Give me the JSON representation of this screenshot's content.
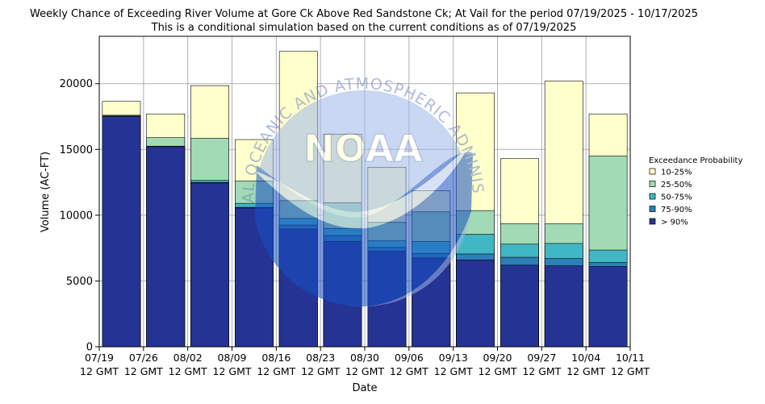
{
  "chart_data": {
    "type": "bar",
    "title": "Weekly Chance of Exceeding River Volume at Gore Ck Above Red Sandstone Ck; At Vail for the period 07/19/2025 - 10/17/2025",
    "subtitle": "This is a conditional simulation based on the current conditions as of 07/19/2025",
    "xlabel": "Date",
    "ylabel": "Volume (AC-FT)",
    "ylim": [
      0,
      23600
    ],
    "yticks": [
      0,
      5000,
      10000,
      15000,
      20000
    ],
    "ytick_labels": [
      "0",
      "5000",
      "10000",
      "15000",
      "20000"
    ],
    "xticks": [
      {
        "date": "07/19",
        "time": "12 GMT"
      },
      {
        "date": "07/26",
        "time": "12 GMT"
      },
      {
        "date": "08/02",
        "time": "12 GMT"
      },
      {
        "date": "08/09",
        "time": "12 GMT"
      },
      {
        "date": "08/16",
        "time": "12 GMT"
      },
      {
        "date": "08/23",
        "time": "12 GMT"
      },
      {
        "date": "08/30",
        "time": "12 GMT"
      },
      {
        "date": "09/06",
        "time": "12 GMT"
      },
      {
        "date": "09/13",
        "time": "12 GMT"
      },
      {
        "date": "09/20",
        "time": "12 GMT"
      },
      {
        "date": "09/27",
        "time": "12 GMT"
      },
      {
        "date": "10/04",
        "time": "12 GMT"
      },
      {
        "date": "10/11",
        "time": "12 GMT"
      }
    ],
    "grid": true,
    "legend_position": "right",
    "legend_title": "Exceedance Probability",
    "series": [
      {
        "name": "10-25%",
        "color": "#ffffcc",
        "values": [
          18650,
          17700,
          19850,
          15750,
          22450,
          16150,
          13650,
          11850,
          19300,
          14300,
          20200,
          17700
        ]
      },
      {
        "name": "25-50%",
        "color": "#a1dab4",
        "values": [
          17600,
          15900,
          15850,
          12600,
          11100,
          10950,
          9450,
          10250,
          10350,
          9350,
          9350,
          14500
        ]
      },
      {
        "name": "50-75%",
        "color": "#41b6c4",
        "values": [
          17550,
          15250,
          12650,
          10900,
          9750,
          9000,
          8050,
          8000,
          8550,
          7800,
          7850,
          7350
        ]
      },
      {
        "name": "75-90%",
        "color": "#2c7fb8",
        "values": [
          17500,
          15200,
          12500,
          10600,
          9250,
          8450,
          7550,
          7100,
          7050,
          6800,
          6700,
          6400
        ]
      },
      {
        "name": "> 90%",
        "color": "#253494",
        "values": [
          17500,
          15200,
          12450,
          10550,
          8950,
          8000,
          7250,
          6750,
          6600,
          6200,
          6150,
          6100
        ]
      }
    ],
    "watermark": {
      "text": "NOAA",
      "ring_text": "NATIONAL OCEANIC AND ATMOSPHERIC ADMINISTRATION"
    }
  }
}
